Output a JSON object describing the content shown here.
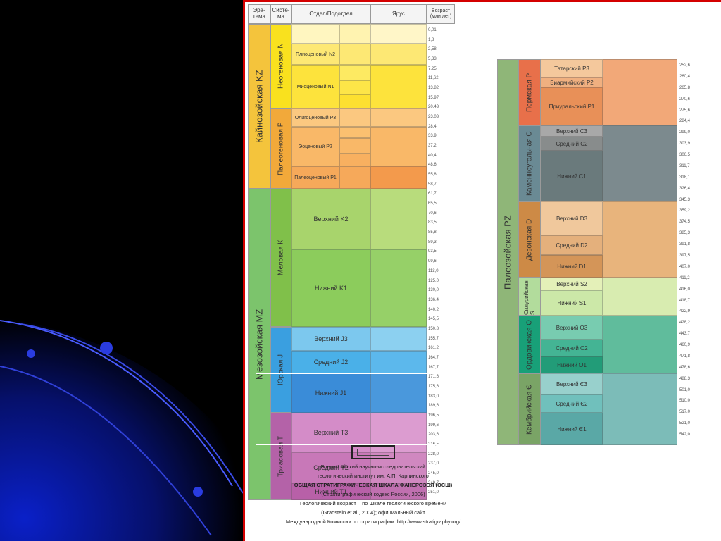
{
  "headers": {
    "era": "Эра-тема",
    "system": "Систе-ма",
    "section": "Отдел/Подотдел",
    "stage": "Ярус",
    "age": "Возраст (млн лет)"
  },
  "left": {
    "eras": [
      {
        "name": "Кайнозойская KZ",
        "color": "#f4c43c"
      },
      {
        "name": "Мезозойская MZ",
        "color": "#7cc46c"
      }
    ],
    "systems": [
      {
        "name": "Неогеновая N",
        "color": "#f9e11e"
      },
      {
        "name": "Палеогеновая P",
        "color": "#f2a93a"
      },
      {
        "name": "Меловая K",
        "color": "#80c04a"
      },
      {
        "name": "Юрская J",
        "color": "#3a9fe0"
      },
      {
        "name": "Триасовая T",
        "color": "#b462a8"
      }
    ],
    "sections": [
      {
        "name": "Плиоценовый N2",
        "color": "#fde874"
      },
      {
        "name": "Миоценовый N1",
        "color": "#fde33c"
      },
      {
        "name": "Олигоценовый P3",
        "color": "#fbc880"
      },
      {
        "name": "Эоценовый P2",
        "color": "#f9b868"
      },
      {
        "name": "Палеоценовый P1",
        "color": "#f6a95a"
      },
      {
        "name": "Верхний K2",
        "color": "#a8d46c"
      },
      {
        "name": "Нижний K1",
        "color": "#8ccc5c"
      },
      {
        "name": "Верхний J3",
        "color": "#7cc8ee"
      },
      {
        "name": "Средний J2",
        "color": "#4ab0e8"
      },
      {
        "name": "Нижний J1",
        "color": "#3a8cd8"
      },
      {
        "name": "Верхний T3",
        "color": "#d48cc8"
      },
      {
        "name": "Средний T2",
        "color": "#c878b8"
      },
      {
        "name": "Нижний T1",
        "color": "#b860a8"
      }
    ],
    "ages": [
      "0,01",
      "1,8",
      "2,58",
      "5,33",
      "7,25",
      "11,62",
      "13,82",
      "15,97",
      "20,43",
      "23,03",
      "28,4",
      "33,9",
      "37,2",
      "40,4",
      "48,6",
      "55,8",
      "58,7",
      "61,7",
      "65,5",
      "70,6",
      "83,5",
      "85,8",
      "89,3",
      "93,5",
      "99,6",
      "112,0",
      "125,0",
      "130,0",
      "136,4",
      "140,2",
      "145,5",
      "150,8",
      "155,7",
      "161,2",
      "164,7",
      "167,7",
      "171,6",
      "175,6",
      "183,0",
      "189,6",
      "196,5",
      "199,6",
      "203,6",
      "216,5",
      "228,0",
      "237,0",
      "245,0",
      "249,7",
      "251,0"
    ]
  },
  "right": {
    "era": {
      "name": "Палеозойская PZ",
      "color": "#8fb678"
    },
    "systems": [
      {
        "name": "Пермская P",
        "color": "#e8704a"
      },
      {
        "name": "Каменноугольная C",
        "color": "#6a8a94"
      },
      {
        "name": "Девонская D",
        "color": "#cd8a46"
      },
      {
        "name": "Силурийская S",
        "color": "#b2dc9c"
      },
      {
        "name": "Ордовикская O",
        "color": "#18a078"
      },
      {
        "name": "Кембрийская Є",
        "color": "#7aa466"
      }
    ],
    "sections": [
      {
        "name": "Татарский P3",
        "color": "#f4c89c"
      },
      {
        "name": "Биармийский P2",
        "color": "#f0b080"
      },
      {
        "name": "Приуральский P1",
        "color": "#e89058"
      },
      {
        "name": "Верхний C3",
        "color": "#a8a8a8"
      },
      {
        "name": "Средний C2",
        "color": "#888c8c"
      },
      {
        "name": "Нижний C1",
        "color": "#6a7a7c"
      },
      {
        "name": "Верхний D3",
        "color": "#f0c89c"
      },
      {
        "name": "Средний D2",
        "color": "#e4b07c"
      },
      {
        "name": "Нижний D1",
        "color": "#d49558"
      },
      {
        "name": "Верхний S2",
        "color": "#e4f0b8"
      },
      {
        "name": "Нижний S1",
        "color": "#cce8a8"
      },
      {
        "name": "Верхний O3",
        "color": "#78ccb0"
      },
      {
        "name": "Средний O2",
        "color": "#44b494"
      },
      {
        "name": "Нижний O1",
        "color": "#229c78"
      },
      {
        "name": "Верхний Є3",
        "color": "#98d0cc"
      },
      {
        "name": "Средний Є2",
        "color": "#70c0bc"
      },
      {
        "name": "Нижний Є1",
        "color": "#5aa8a6"
      }
    ],
    "ages": [
      "252,6",
      "260,4",
      "265,8",
      "270,6",
      "275,6",
      "284,4",
      "299,0",
      "303,9",
      "306,5",
      "311,7",
      "318,1",
      "326,4",
      "345,3",
      "359,2",
      "374,5",
      "385,3",
      "391,8",
      "397,5",
      "407,0",
      "411,2",
      "416,0",
      "418,7",
      "422,9",
      "428,2",
      "443,7",
      "460,9",
      "471,8",
      "478,6",
      "488,3",
      "501,0",
      "510,0",
      "517,0",
      "521,0",
      "542,0"
    ]
  },
  "caption": {
    "line1": "Всероссийский научно-исследовательский",
    "line2": "геологический институт им. А.П. Карпинского",
    "line3": "ОБЩАЯ СТРАТИГРАФИЧЕСКАЯ ШКАЛА ФАНЕРОЗОЯ (ОСШ)",
    "line4": "(Стратиграфический кодекс России, 2006)",
    "line5": "Геологический возраст – по Шкале геологического времени",
    "line6": "(Gradstein et al., 2004); официальный сайт",
    "line7": "Международной Комиссии по стратиграфии: http://www.stratigraphy.org/"
  }
}
